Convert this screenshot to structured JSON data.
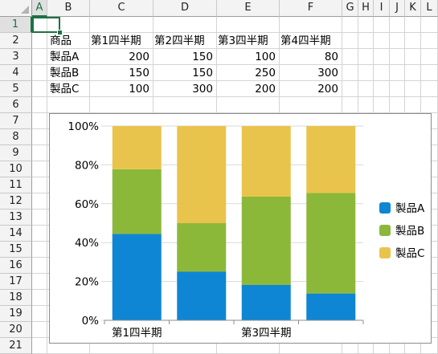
{
  "columns": [
    "A",
    "B",
    "C",
    "D",
    "E",
    "F",
    "G",
    "H",
    "I",
    "J",
    "K",
    "L"
  ],
  "rows": [
    "1",
    "2",
    "3",
    "4",
    "5",
    "6",
    "7",
    "8",
    "9",
    "10",
    "11",
    "12",
    "13",
    "14",
    "15",
    "16",
    "17",
    "18",
    "19",
    "20",
    "21"
  ],
  "active_cell": "A1",
  "table": {
    "header": [
      "商品",
      "第1四半期",
      "第2四半期",
      "第3四半期",
      "第4四半期"
    ],
    "rows": [
      {
        "name": "製品A",
        "values": [
          "200",
          "150",
          "100",
          "80"
        ]
      },
      {
        "name": "製品B",
        "values": [
          "150",
          "150",
          "250",
          "300"
        ]
      },
      {
        "name": "製品C",
        "values": [
          "100",
          "300",
          "200",
          "200"
        ]
      }
    ]
  },
  "colors": {
    "series_a": "#0e86d4",
    "series_b": "#8cb83a",
    "series_c": "#e9c44c",
    "grid": "#d9d9d9",
    "selection": "#1e7145"
  },
  "chart_data": {
    "type": "bar",
    "stacked": "percent",
    "categories": [
      "第1四半期",
      "第2四半期",
      "第3四半期",
      "第4四半期"
    ],
    "x_tick_labels_shown": [
      "第1四半期",
      "",
      "第3四半期",
      ""
    ],
    "series": [
      {
        "name": "製品A",
        "values": [
          200,
          150,
          100,
          80
        ]
      },
      {
        "name": "製品B",
        "values": [
          150,
          150,
          250,
          300
        ]
      },
      {
        "name": "製品C",
        "values": [
          100,
          300,
          200,
          200
        ]
      }
    ],
    "y_ticks": [
      "0%",
      "20%",
      "40%",
      "60%",
      "80%",
      "100%"
    ],
    "ylim": [
      0,
      100
    ],
    "grid": true,
    "legend_position": "right"
  }
}
